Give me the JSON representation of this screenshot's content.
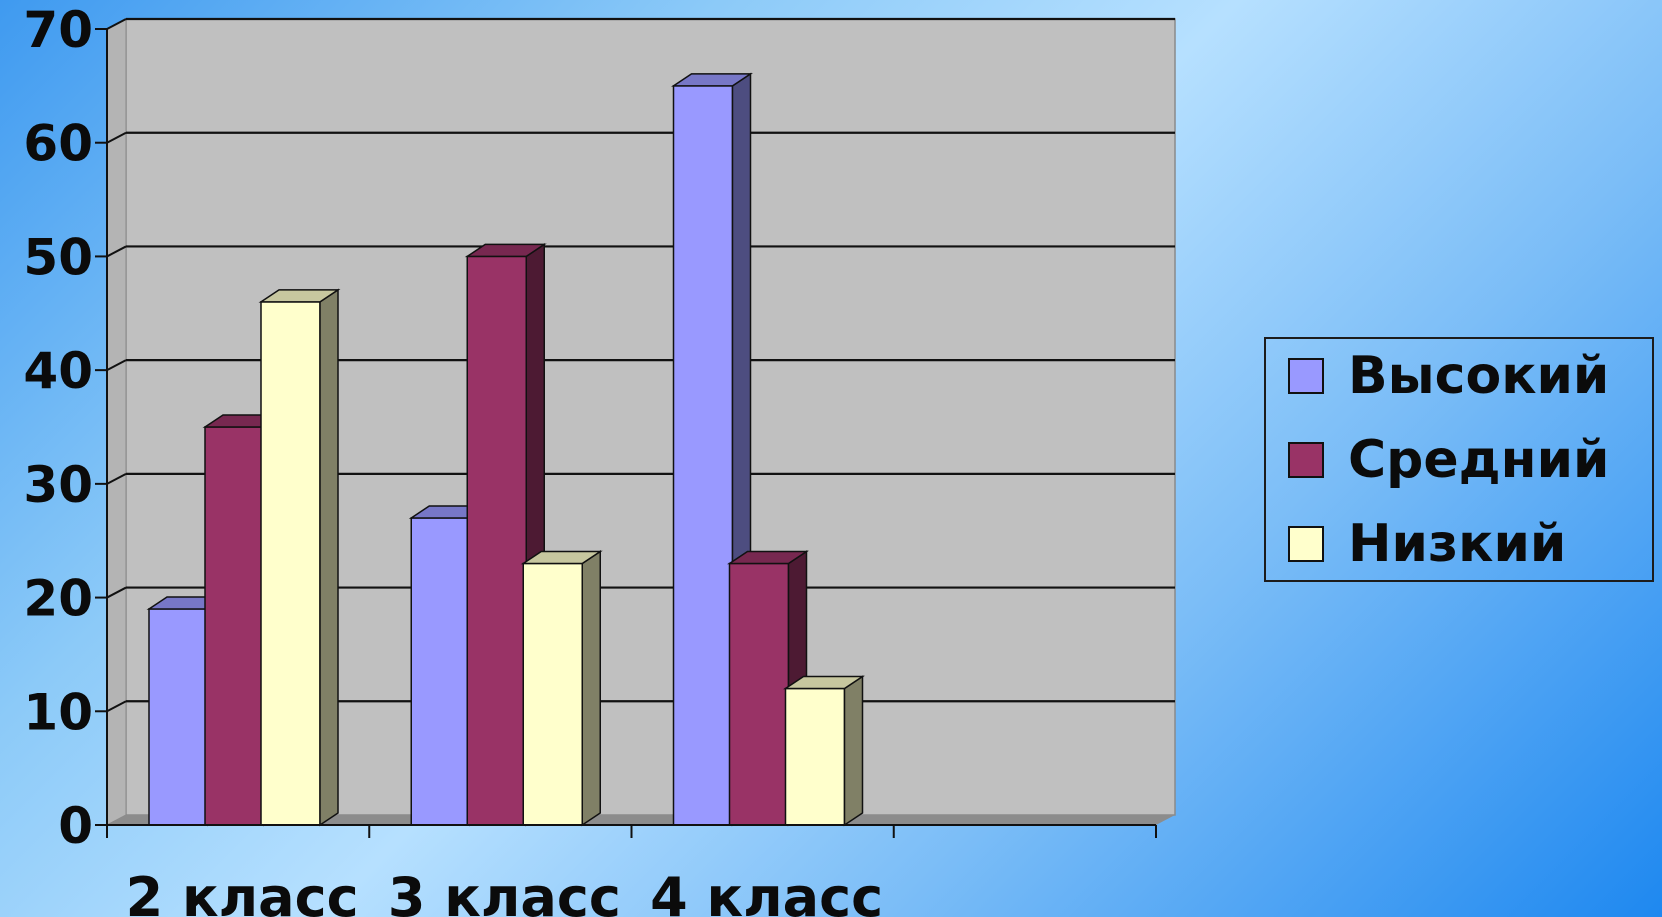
{
  "chart_data": {
    "type": "bar",
    "style": "3d-clustered-column",
    "categories": [
      "2 класс",
      "3 класс",
      "4 класс"
    ],
    "series": [
      {
        "name": "Высокий",
        "values": [
          19,
          27,
          65
        ],
        "color": "#9999FF"
      },
      {
        "name": "Средний",
        "values": [
          35,
          50,
          23
        ],
        "color": "#993366"
      },
      {
        "name": "Низкий",
        "values": [
          46,
          23,
          12
        ],
        "color": "#FFFFCC"
      }
    ],
    "ylim": [
      0,
      70
    ],
    "yticks": [
      "0",
      "10",
      "20",
      "30",
      "40",
      "50",
      "60",
      "70"
    ],
    "grid": true,
    "legend_position": "right",
    "plot_background": "#C0C0C0"
  }
}
